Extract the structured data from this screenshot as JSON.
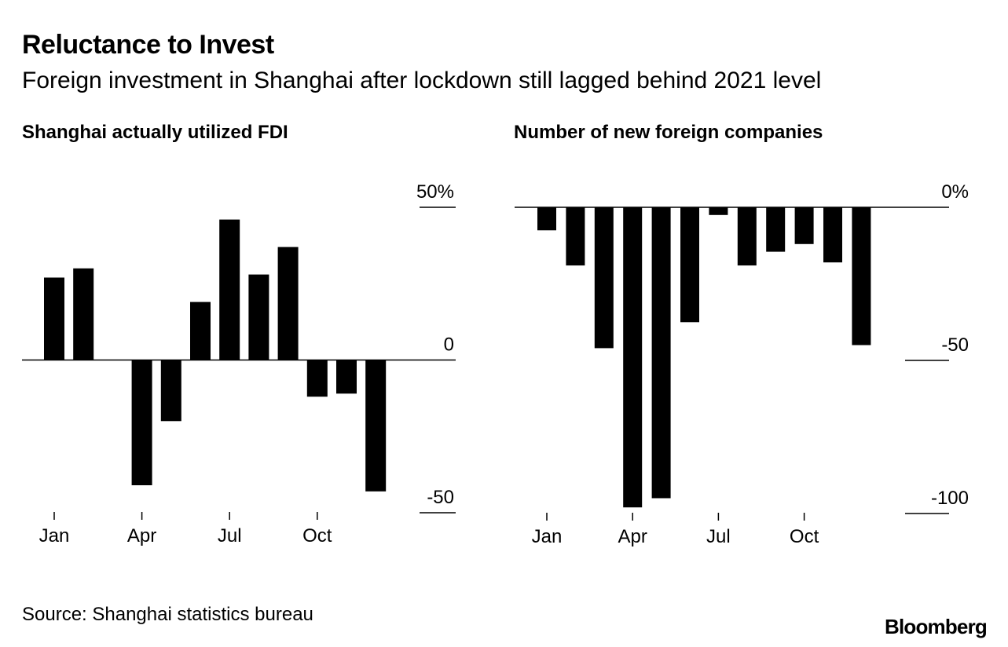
{
  "title": "Reluctance to Invest",
  "subtitle": "Foreign investment in Shanghai after lockdown still lagged behind 2021 level",
  "source": "Source: Shanghai statistics bureau",
  "brand": "Bloomberg",
  "colors": {
    "bar": "#000000",
    "background": "#ffffff",
    "text": "#000000"
  },
  "chart_data": [
    {
      "type": "bar",
      "title": "Shanghai actually utilized FDI",
      "categories": [
        "Jan",
        "Feb",
        "Mar",
        "Apr",
        "May",
        "Jun",
        "Jul",
        "Aug",
        "Sep",
        "Oct",
        "Nov",
        "Dec"
      ],
      "values": [
        27,
        30,
        0,
        -41,
        -20,
        19,
        46,
        28,
        37,
        -12,
        -11,
        -43
      ],
      "ylim": [
        -50,
        50
      ],
      "yticks": [
        {
          "value": 50,
          "label": "50%"
        },
        {
          "value": 0,
          "label": "0"
        },
        {
          "value": -50,
          "label": "-50"
        }
      ],
      "xticks": [
        {
          "index": 0,
          "label": "Jan"
        },
        {
          "index": 3,
          "label": "Apr"
        },
        {
          "index": 6,
          "label": "Jul"
        },
        {
          "index": 9,
          "label": "Oct"
        }
      ],
      "xlabel": "",
      "ylabel": ""
    },
    {
      "type": "bar",
      "title": "Number of new foreign companies",
      "categories": [
        "Jan",
        "Feb",
        "Mar",
        "Apr",
        "May",
        "Jun",
        "Jul",
        "Aug",
        "Sep",
        "Oct",
        "Nov",
        "Dec"
      ],
      "values": [
        -7.5,
        -19,
        -46,
        -98,
        -95,
        -37.5,
        -2.5,
        -19,
        -14.5,
        -12,
        -18,
        -45
      ],
      "ylim": [
        -100,
        0
      ],
      "yticks": [
        {
          "value": 0,
          "label": "0%"
        },
        {
          "value": -50,
          "label": "-50"
        },
        {
          "value": -100,
          "label": "-100"
        }
      ],
      "xticks": [
        {
          "index": 0,
          "label": "Jan"
        },
        {
          "index": 3,
          "label": "Apr"
        },
        {
          "index": 6,
          "label": "Jul"
        },
        {
          "index": 9,
          "label": "Oct"
        }
      ],
      "xlabel": "",
      "ylabel": ""
    }
  ]
}
